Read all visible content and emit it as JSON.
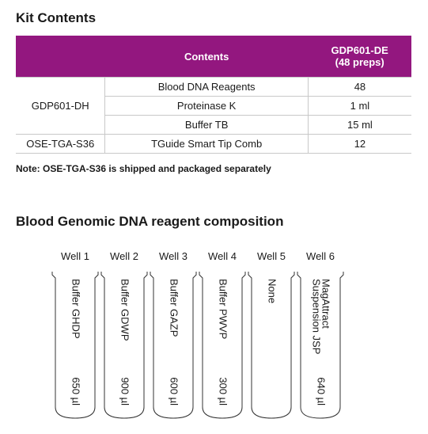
{
  "header": {
    "title": "Kit Contents"
  },
  "table": {
    "header": [
      "Contents",
      "GDP601-DE",
      "(48 preps)"
    ],
    "group": "GDP601-DH",
    "rows": [
      [
        "Blood DNA Reagents",
        "48"
      ],
      [
        "Proteinase K",
        "1 ml"
      ],
      [
        "Buffer TB",
        "15 ml"
      ],
      [
        "OSE-TGA-S36",
        "TGuide Smart Tip Comb",
        "12"
      ]
    ]
  },
  "note": "Note: OSE-TGA-S36 is shipped and packaged separately",
  "section": {
    "title": "Blood Genomic DNA reagent composition"
  },
  "wells": [
    {
      "label": "Well 1",
      "content": [
        "Buffer GHDP"
      ],
      "volume": "650 µl"
    },
    {
      "label": "Well 2",
      "content": [
        "Buffer GDWP"
      ],
      "volume": "900 µl"
    },
    {
      "label": "Well 3",
      "content": [
        "Buffer GAZP"
      ],
      "volume": "600 µl"
    },
    {
      "label": "Well 4",
      "content": [
        "Buffer PWVP"
      ],
      "volume": "300 µl"
    },
    {
      "label": "Well 5",
      "content": [
        "None"
      ]
    },
    {
      "label": "Well 6",
      "content": [
        "MagAttract",
        "Suspension JSP"
      ],
      "volume": "640 µl"
    }
  ]
}
